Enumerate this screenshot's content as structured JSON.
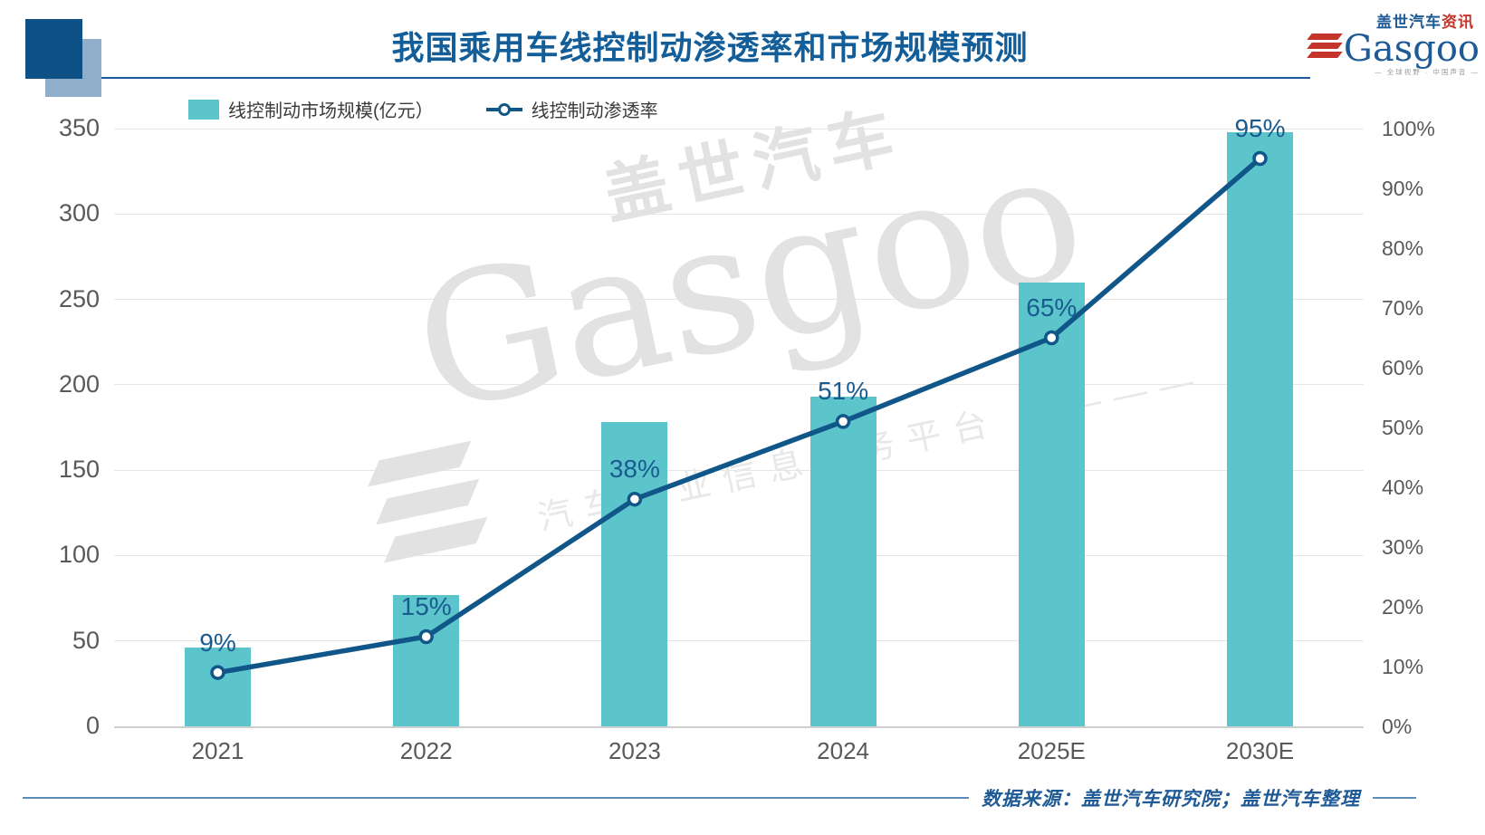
{
  "header": {
    "title": "我国乘用车线控制动渗透率和市场规模预测",
    "logo": {
      "cn_blue": "盖世汽车",
      "cn_red": "资讯",
      "en": "Gasgoo",
      "tagline": "— 全球视野 · 中国声音 —"
    }
  },
  "chart_data": {
    "type": "combo_bar_line",
    "categories": [
      "2021",
      "2022",
      "2023",
      "2024",
      "2025E",
      "2030E"
    ],
    "series": [
      {
        "name": "线控制动市场规模(亿元）",
        "type": "bar",
        "axis": "left",
        "color": "#5CC5CC",
        "values": [
          46,
          77,
          178,
          193,
          260,
          348
        ]
      },
      {
        "name": "线控制动渗透率",
        "type": "line",
        "axis": "right",
        "color": "#115689",
        "values": [
          9,
          15,
          38,
          51,
          65,
          95
        ],
        "labels": [
          "9%",
          "15%",
          "38%",
          "51%",
          "65%",
          "95%"
        ]
      }
    ],
    "left_axis": {
      "min": 0,
      "max": 350,
      "step": 50,
      "ticks": [
        "350",
        "300",
        "250",
        "200",
        "150",
        "100",
        "50",
        "0"
      ]
    },
    "right_axis": {
      "min": 0,
      "max": 100,
      "step": 10,
      "ticks": [
        "100%",
        "90%",
        "80%",
        "70%",
        "60%",
        "50%",
        "40%",
        "30%",
        "20%",
        "10%",
        "0%"
      ]
    },
    "grid": true,
    "legend_position": "top-left"
  },
  "watermark": {
    "line1": "盖世汽车",
    "line2": "Gasgoo",
    "line3": "汽车产业信息服务平台 ————"
  },
  "footer": {
    "text": "数据来源：盖世汽车研究院；盖世汽车整理"
  },
  "theme": {
    "bar": "#5CC5CC",
    "line": "#115689",
    "label_blue": "#1A5B8F",
    "title_blue": "#135E98",
    "logo_blue": "#1E5A96",
    "logo_red": "#C4342B",
    "tick_gray": "#595959",
    "grid": "#E6E6E6",
    "baseline": "#CFCFCF",
    "watermark_gray": "#E2E2E2",
    "footer_rule": "#5B8DB8",
    "deco_dark": "#0D5187",
    "deco_light": "#8FAEC9"
  }
}
